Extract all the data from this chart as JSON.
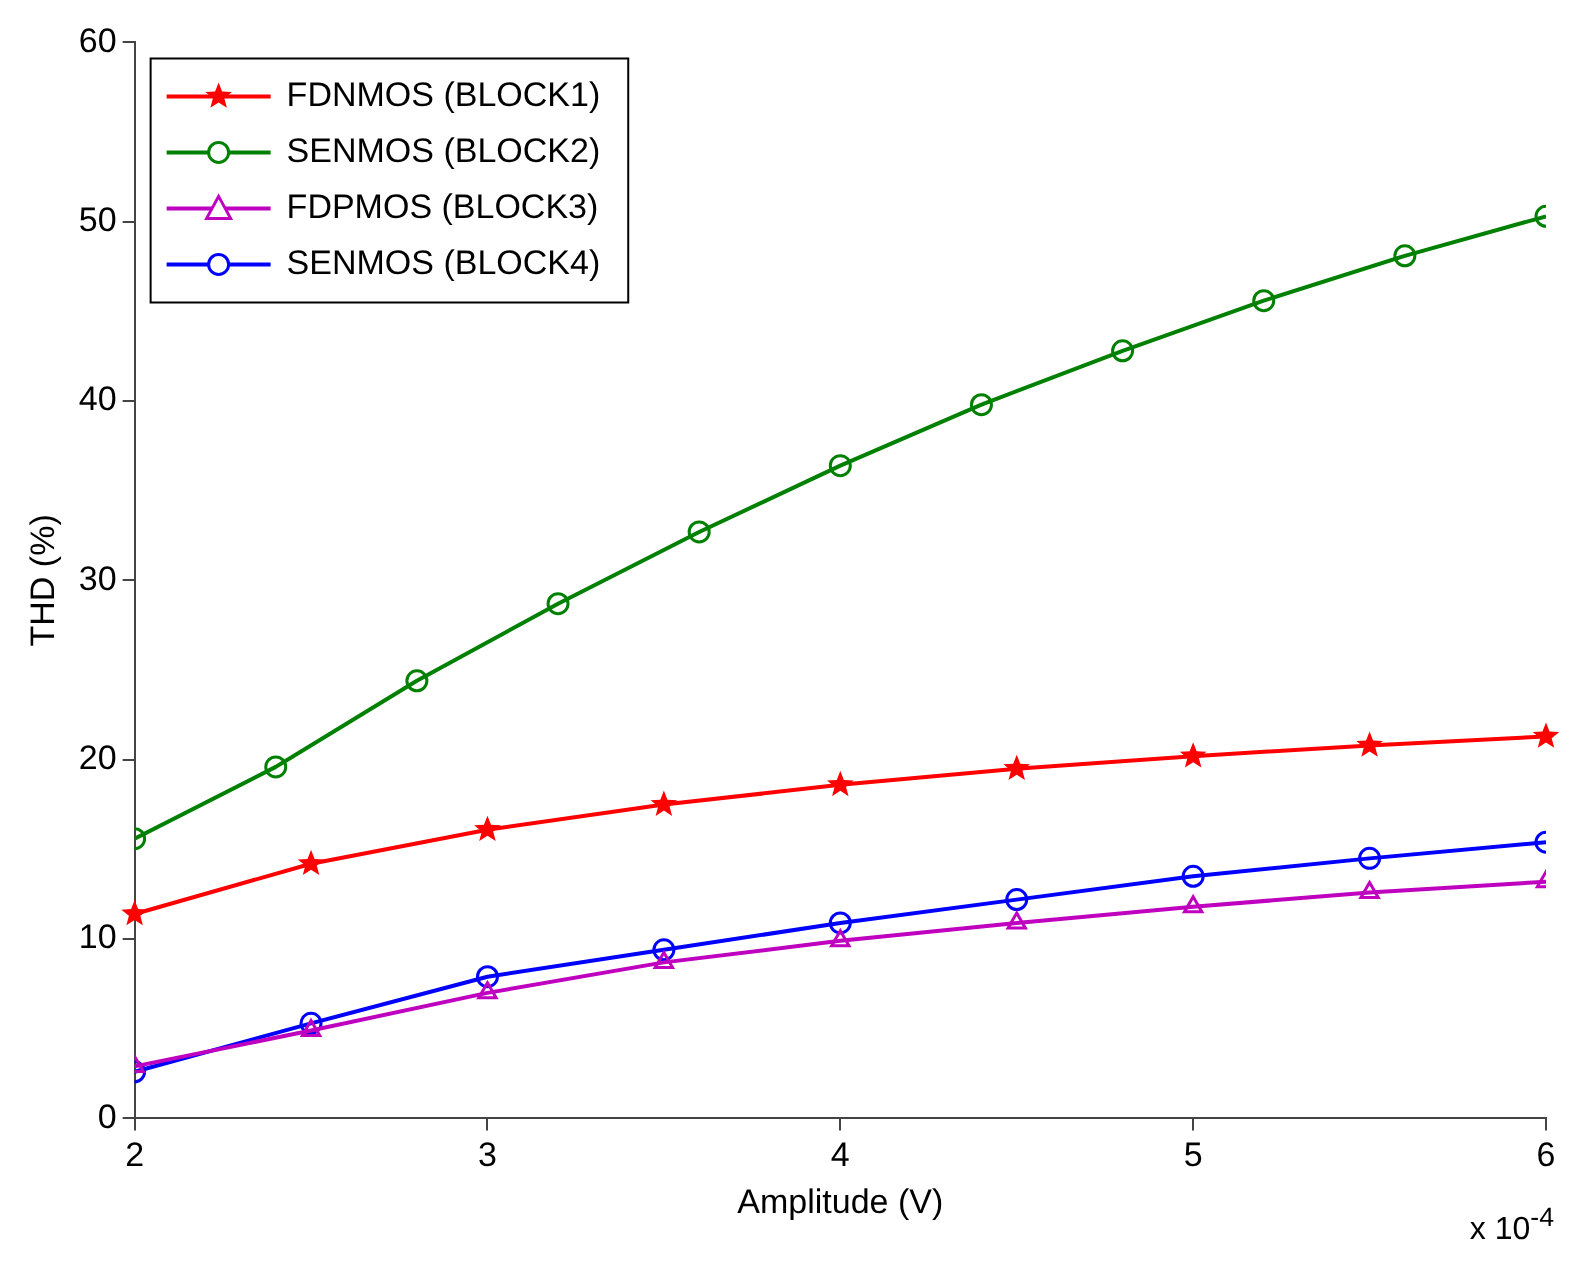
{
  "chart_data": {
    "type": "line",
    "xlabel": "Amplitude (V)",
    "ylabel": "THD (%)",
    "annotations": [
      "x 10$^{-4}$"
    ],
    "xlim": [
      2,
      6
    ],
    "xticks": [
      2,
      3,
      4,
      5,
      6
    ],
    "ylim": [
      0,
      60
    ],
    "yticks": [
      0,
      10,
      20,
      30,
      40,
      50,
      60
    ],
    "grid": false,
    "legend": "top left",
    "line_style": "solid",
    "series": [
      {
        "name": "FDNMOS (BLOCK1)",
        "color": "#ff0000",
        "marker": "star",
        "x": [
          2,
          2.5,
          3,
          3.5,
          4,
          4.5,
          5,
          5.5,
          6
        ],
        "values": [
          11.4,
          14.2,
          16.1,
          17.5,
          18.6,
          19.5,
          20.2,
          20.8,
          21.3
        ]
      },
      {
        "name": "SENMOS (BLOCK2)",
        "color": "#008000",
        "marker": "circle",
        "x": [
          2,
          2.4,
          2.8,
          3.2,
          3.6,
          4,
          4.4,
          4.8,
          5.2,
          5.6,
          6
        ],
        "values": [
          15.6,
          19.6,
          24.4,
          28.7,
          32.7,
          36.4,
          39.8,
          42.8,
          45.6,
          48.1,
          50.3
        ]
      },
      {
        "name": "FDPMOS (BLOCK3)",
        "color": "#bf00bf",
        "marker": "triangle",
        "x": [
          2,
          2.5,
          3,
          3.5,
          4,
          4.5,
          5,
          5.5,
          6
        ],
        "values": [
          2.9,
          4.9,
          7.0,
          8.7,
          9.9,
          10.9,
          11.8,
          12.6,
          13.2
        ]
      },
      {
        "name": "SENMOS (BLOCK4)",
        "color": "#0000ff",
        "marker": "circle",
        "x": [
          2,
          2.5,
          3,
          3.5,
          4,
          4.5,
          5,
          5.5,
          6
        ],
        "values": [
          2.6,
          5.3,
          7.9,
          9.4,
          10.9,
          12.2,
          13.5,
          14.5,
          15.4
        ]
      }
    ]
  }
}
